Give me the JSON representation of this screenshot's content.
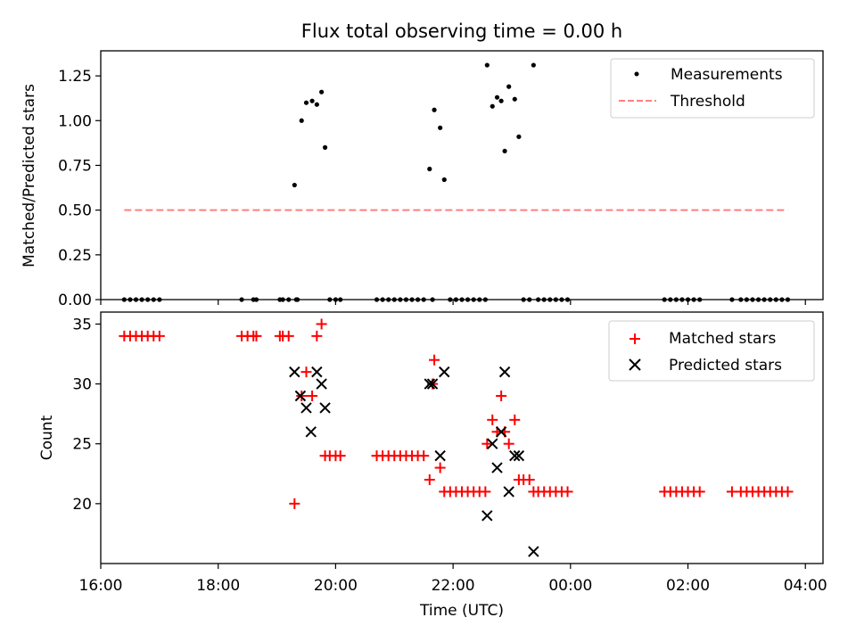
{
  "chart_data": [
    {
      "type": "scatter",
      "title": "Flux total observing time = 0.00 h",
      "xlabel": "",
      "ylabel": "Matched/Predicted stars",
      "xlim": [
        16.0,
        28.3
      ],
      "ylim": [
        0.0,
        1.39
      ],
      "yticks": [
        0.0,
        0.25,
        0.5,
        0.75,
        1.0,
        1.25
      ],
      "ytick_labels": [
        "0.00",
        "0.25",
        "0.50",
        "0.75",
        "1.00",
        "1.25"
      ],
      "legend": [
        "Measurements",
        "Threshold"
      ],
      "series": [
        {
          "name": "Measurements",
          "marker": "dot",
          "color": "#000000",
          "points": [
            [
              16.4,
              0
            ],
            [
              16.5,
              0
            ],
            [
              16.6,
              0
            ],
            [
              16.7,
              0
            ],
            [
              16.8,
              0
            ],
            [
              16.9,
              0
            ],
            [
              17.0,
              0
            ],
            [
              18.4,
              0
            ],
            [
              18.6,
              0
            ],
            [
              18.65,
              0
            ],
            [
              19.05,
              0
            ],
            [
              19.1,
              0
            ],
            [
              19.2,
              0
            ],
            [
              19.3,
              0.64
            ],
            [
              19.33,
              0
            ],
            [
              19.35,
              0
            ],
            [
              19.42,
              1.0
            ],
            [
              19.5,
              1.1
            ],
            [
              19.6,
              1.11
            ],
            [
              19.68,
              1.09
            ],
            [
              19.76,
              1.16
            ],
            [
              19.82,
              0.85
            ],
            [
              19.9,
              0
            ],
            [
              20.0,
              0
            ],
            [
              20.08,
              0
            ],
            [
              20.7,
              0
            ],
            [
              20.8,
              0
            ],
            [
              20.9,
              0
            ],
            [
              21.0,
              0
            ],
            [
              21.1,
              0
            ],
            [
              21.2,
              0
            ],
            [
              21.3,
              0
            ],
            [
              21.4,
              0
            ],
            [
              21.5,
              0
            ],
            [
              21.6,
              0.73
            ],
            [
              21.65,
              0
            ],
            [
              21.68,
              1.06
            ],
            [
              21.78,
              0.96
            ],
            [
              21.85,
              0.67
            ],
            [
              21.95,
              0
            ],
            [
              22.05,
              0
            ],
            [
              22.15,
              0
            ],
            [
              22.25,
              0
            ],
            [
              22.35,
              0
            ],
            [
              22.45,
              0
            ],
            [
              22.55,
              0
            ],
            [
              22.58,
              1.31
            ],
            [
              22.67,
              1.08
            ],
            [
              22.75,
              1.13
            ],
            [
              22.82,
              1.11
            ],
            [
              22.88,
              0.83
            ],
            [
              22.95,
              1.19
            ],
            [
              23.05,
              1.12
            ],
            [
              23.12,
              0.91
            ],
            [
              23.2,
              0
            ],
            [
              23.3,
              0
            ],
            [
              23.37,
              1.31
            ],
            [
              23.45,
              0
            ],
            [
              23.55,
              0
            ],
            [
              23.65,
              0
            ],
            [
              23.75,
              0
            ],
            [
              23.85,
              0
            ],
            [
              23.95,
              0
            ],
            [
              25.6,
              0
            ],
            [
              25.7,
              0
            ],
            [
              25.8,
              0
            ],
            [
              25.9,
              0
            ],
            [
              26.0,
              0
            ],
            [
              26.1,
              0
            ],
            [
              26.2,
              0
            ],
            [
              26.75,
              0
            ],
            [
              26.9,
              0
            ],
            [
              27.0,
              0
            ],
            [
              27.1,
              0
            ],
            [
              27.2,
              0
            ],
            [
              27.3,
              0
            ],
            [
              27.4,
              0
            ],
            [
              27.5,
              0
            ],
            [
              27.6,
              0
            ],
            [
              27.7,
              0
            ]
          ]
        },
        {
          "name": "Threshold",
          "style": "dashed",
          "color": "#ff7f7f",
          "x": [
            16.4,
            27.7
          ],
          "y": [
            0.5,
            0.5
          ]
        }
      ]
    },
    {
      "type": "scatter",
      "title": "",
      "xlabel": "Time (UTC)",
      "ylabel": "Count",
      "xlim": [
        16.0,
        28.3
      ],
      "ylim": [
        15.0,
        36.0
      ],
      "yticks": [
        20,
        25,
        30,
        35
      ],
      "ytick_labels": [
        "20",
        "25",
        "30",
        "35"
      ],
      "xticks": [
        16,
        18,
        20,
        22,
        24,
        26,
        28
      ],
      "xtick_labels": [
        "16:00",
        "18:00",
        "20:00",
        "22:00",
        "00:00",
        "02:00",
        "04:00"
      ],
      "legend": [
        "Matched stars",
        "Predicted stars"
      ],
      "series": [
        {
          "name": "Matched stars",
          "marker": "plus",
          "color": "#ff0000",
          "points": [
            [
              16.4,
              34
            ],
            [
              16.5,
              34
            ],
            [
              16.6,
              34
            ],
            [
              16.7,
              34
            ],
            [
              16.8,
              34
            ],
            [
              16.9,
              34
            ],
            [
              17.0,
              34
            ],
            [
              18.4,
              34
            ],
            [
              18.5,
              34
            ],
            [
              18.6,
              34
            ],
            [
              18.65,
              34
            ],
            [
              19.05,
              34
            ],
            [
              19.1,
              34
            ],
            [
              19.2,
              34
            ],
            [
              19.3,
              20
            ],
            [
              19.42,
              29
            ],
            [
              19.5,
              31
            ],
            [
              19.6,
              29
            ],
            [
              19.68,
              34
            ],
            [
              19.76,
              35
            ],
            [
              19.82,
              24
            ],
            [
              19.9,
              24
            ],
            [
              20.0,
              24
            ],
            [
              20.08,
              24
            ],
            [
              20.7,
              24
            ],
            [
              20.8,
              24
            ],
            [
              20.9,
              24
            ],
            [
              21.0,
              24
            ],
            [
              21.1,
              24
            ],
            [
              21.2,
              24
            ],
            [
              21.3,
              24
            ],
            [
              21.4,
              24
            ],
            [
              21.5,
              24
            ],
            [
              21.6,
              22
            ],
            [
              21.65,
              30
            ],
            [
              21.68,
              32
            ],
            [
              21.78,
              23
            ],
            [
              21.85,
              21
            ],
            [
              21.95,
              21
            ],
            [
              22.05,
              21
            ],
            [
              22.15,
              21
            ],
            [
              22.25,
              21
            ],
            [
              22.35,
              21
            ],
            [
              22.45,
              21
            ],
            [
              22.55,
              21
            ],
            [
              22.58,
              25
            ],
            [
              22.67,
              27
            ],
            [
              22.75,
              26
            ],
            [
              22.82,
              29
            ],
            [
              22.88,
              26
            ],
            [
              22.95,
              25
            ],
            [
              23.05,
              27
            ],
            [
              23.12,
              22
            ],
            [
              23.2,
              22
            ],
            [
              23.3,
              22
            ],
            [
              23.37,
              21
            ],
            [
              23.45,
              21
            ],
            [
              23.55,
              21
            ],
            [
              23.65,
              21
            ],
            [
              23.75,
              21
            ],
            [
              23.85,
              21
            ],
            [
              23.95,
              21
            ],
            [
              25.6,
              21
            ],
            [
              25.7,
              21
            ],
            [
              25.8,
              21
            ],
            [
              25.9,
              21
            ],
            [
              26.0,
              21
            ],
            [
              26.1,
              21
            ],
            [
              26.2,
              21
            ],
            [
              26.75,
              21
            ],
            [
              26.9,
              21
            ],
            [
              27.0,
              21
            ],
            [
              27.1,
              21
            ],
            [
              27.2,
              21
            ],
            [
              27.3,
              21
            ],
            [
              27.4,
              21
            ],
            [
              27.5,
              21
            ],
            [
              27.6,
              21
            ],
            [
              27.7,
              21
            ]
          ]
        },
        {
          "name": "Predicted stars",
          "marker": "x",
          "color": "#000000",
          "points": [
            [
              19.3,
              31
            ],
            [
              19.4,
              29
            ],
            [
              19.5,
              28
            ],
            [
              19.58,
              26
            ],
            [
              19.68,
              31
            ],
            [
              19.76,
              30
            ],
            [
              19.82,
              28
            ],
            [
              21.6,
              30
            ],
            [
              21.65,
              30
            ],
            [
              21.78,
              24
            ],
            [
              21.85,
              31
            ],
            [
              22.58,
              19
            ],
            [
              22.67,
              25
            ],
            [
              22.75,
              23
            ],
            [
              22.82,
              26
            ],
            [
              22.88,
              31
            ],
            [
              22.95,
              21
            ],
            [
              23.05,
              24
            ],
            [
              23.12,
              24
            ],
            [
              23.37,
              16
            ]
          ]
        }
      ]
    }
  ]
}
